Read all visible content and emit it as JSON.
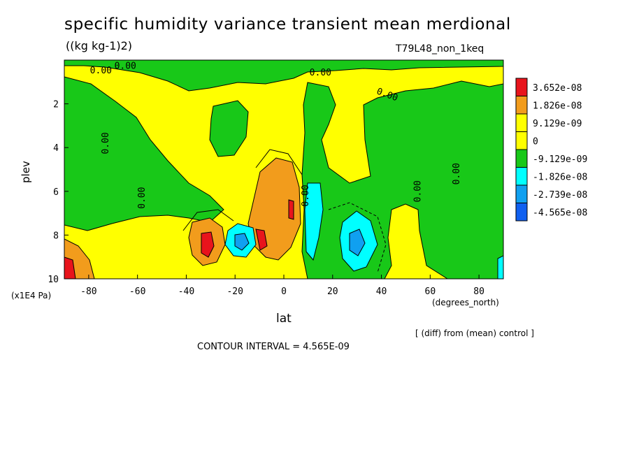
{
  "header": {
    "title": "specific humidity variance transient mean merdional",
    "units": "((kg kg-1)2)",
    "run_label": "T79L48_non_1keq"
  },
  "footer": {
    "diff_note": "[ (diff) from (mean) control ]",
    "contour_interval": "CONTOUR INTERVAL = 4.565E-09"
  },
  "chart_data": {
    "type": "heatmap",
    "title": "specific humidity variance transient mean merdional",
    "xlabel": "lat",
    "xunits": "(degrees_north)",
    "ylabel": "plev",
    "yunits": "(x1E4 Pa)",
    "xlim": [
      -90,
      90
    ],
    "ylim": [
      0,
      10
    ],
    "y_inverted": true,
    "x_ticks": [
      "-80",
      "-60",
      "-40",
      "-20",
      "0",
      "20",
      "40",
      "60",
      "80"
    ],
    "y_ticks": [
      "2",
      "4",
      "6",
      "8",
      "10"
    ],
    "contour_labels": [
      "0.00",
      "0.00",
      "0.00",
      "0.00",
      "0.00",
      "0.00",
      "0.00",
      "0.00",
      "0.00"
    ],
    "legend": {
      "placement": "right",
      "entries": [
        {
          "label": "3.652e-08",
          "color": "#e8141c"
        },
        {
          "label": "1.826e-08",
          "color": "#f29c1c"
        },
        {
          "label": "9.129e-09",
          "color": "#ffff00"
        },
        {
          "label": "0",
          "color": "#ffff00"
        },
        {
          "label": "-9.129e-09",
          "color": "#18c818"
        },
        {
          "label": "-1.826e-08",
          "color": "#00ffff"
        },
        {
          "label": "-2.739e-08",
          "color": "#10a0f0"
        },
        {
          "label": "-4.565e-08",
          "color": "#1060f0"
        }
      ]
    },
    "colors": {
      "yellow": "#ffff00",
      "green": "#18c818",
      "orange": "#f29c1c",
      "red": "#e8141c",
      "cyan": "#00ffff",
      "lightblue": "#10a0f0",
      "blue": "#1060f0"
    }
  }
}
